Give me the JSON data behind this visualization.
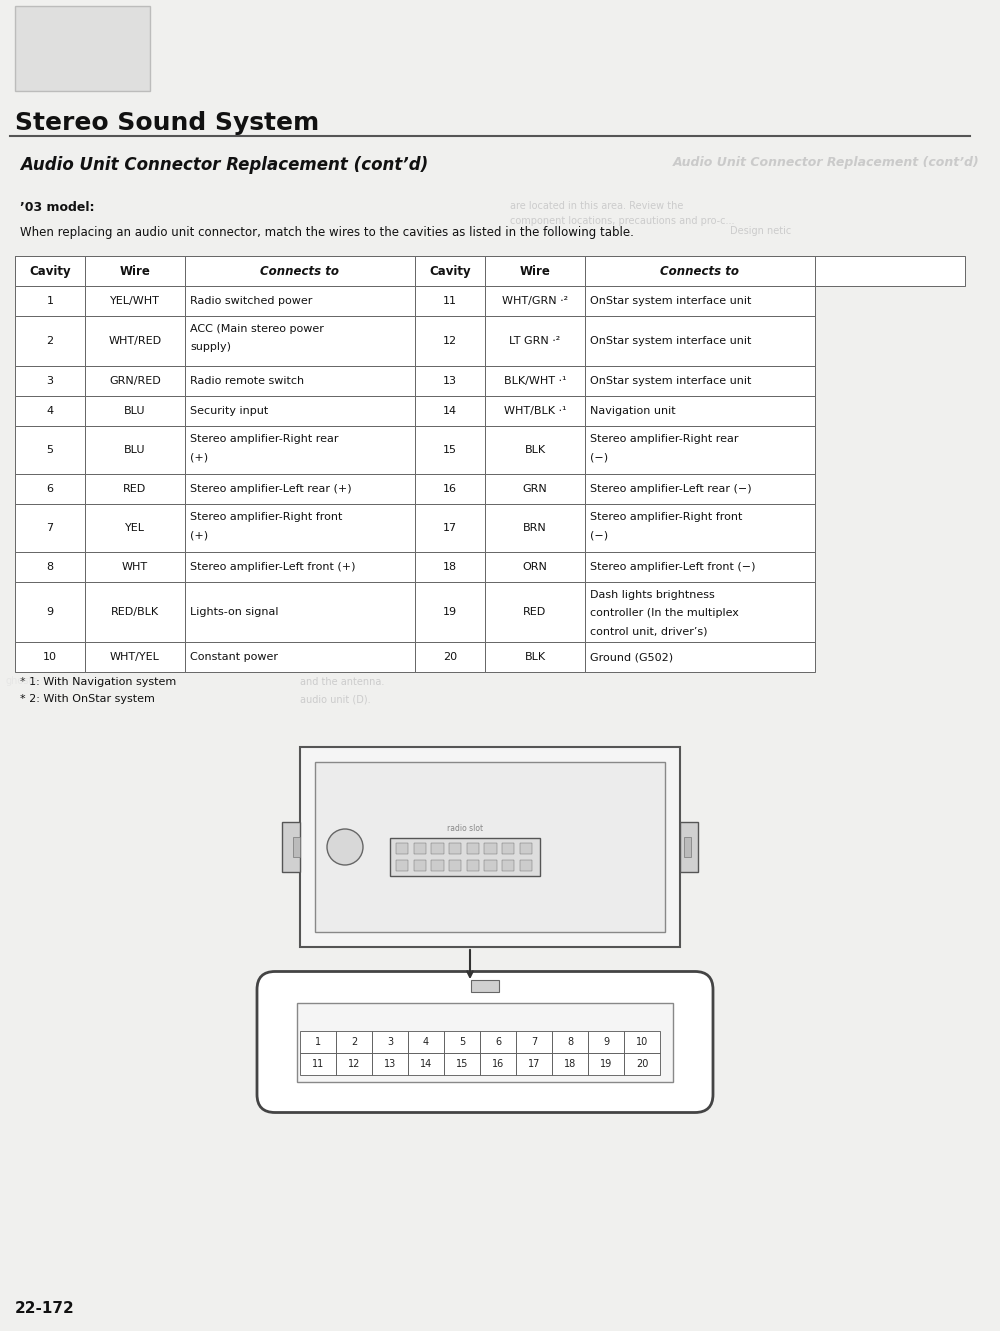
{
  "title": "Stereo Sound System",
  "subtitle": "Audio Unit Connector Replacement (cont’d)",
  "subtitle_mirror": "Audio Unit Connector Replacement (cont’d)",
  "model_label": "’03 model:",
  "intro_text": "When replacing an audio unit connector, match the wires to the cavities as listed in the following table.",
  "bg_color": "#e8e8e8",
  "page_color": "#f0f0ee",
  "table_headers": [
    "Cavity",
    "Wire",
    "Connects to",
    "Cavity",
    "Wire",
    "Connects to"
  ],
  "table_rows": [
    [
      "1",
      "YEL/WHT",
      "Radio switched power",
      "11",
      "WHT/GRN ⋅²",
      "OnStar system interface unit"
    ],
    [
      "2",
      "WHT/RED",
      "ACC (Main stereo power\nsupply)",
      "12",
      "LT GRN ⋅²",
      "OnStar system interface unit"
    ],
    [
      "3",
      "GRN/RED",
      "Radio remote switch",
      "13",
      "BLK/WHT ⋅¹",
      "OnStar system interface unit"
    ],
    [
      "4",
      "BLU",
      "Security input",
      "14",
      "WHT/BLK ⋅¹",
      "Navigation unit"
    ],
    [
      "5",
      "BLU",
      "Stereo amplifier-Right rear\n(+)",
      "15",
      "BLK",
      "Stereo amplifier-Right rear\n(−)"
    ],
    [
      "6",
      "RED",
      "Stereo amplifier-Left rear (+)",
      "16",
      "GRN",
      "Stereo amplifier-Left rear (−)"
    ],
    [
      "7",
      "YEL",
      "Stereo amplifier-Right front\n(+)",
      "17",
      "BRN",
      "Stereo amplifier-Right front\n(−)"
    ],
    [
      "8",
      "WHT",
      "Stereo amplifier-Left front (+)",
      "18",
      "ORN",
      "Stereo amplifier-Left front (−)"
    ],
    [
      "9",
      "RED/BLK",
      "Lights-on signal",
      "19",
      "RED",
      "Dash lights brightness\ncontroller (In the multiplex\ncontrol unit, driver’s)"
    ],
    [
      "10",
      "WHT/YEL",
      "Constant power",
      "20",
      "BLK",
      "Ground (G502)"
    ]
  ],
  "footnote1": "* 1: With Navigation system",
  "footnote2": "* 2: With OnStar system",
  "page_number": "22-172",
  "connector_numbers_top": [
    "1",
    "2",
    "3",
    "4",
    "5",
    "6",
    "7",
    "8",
    "9",
    "10"
  ],
  "connector_numbers_bot": [
    "11",
    "12",
    "13",
    "14",
    "15",
    "16",
    "17",
    "18",
    "19",
    "20"
  ]
}
